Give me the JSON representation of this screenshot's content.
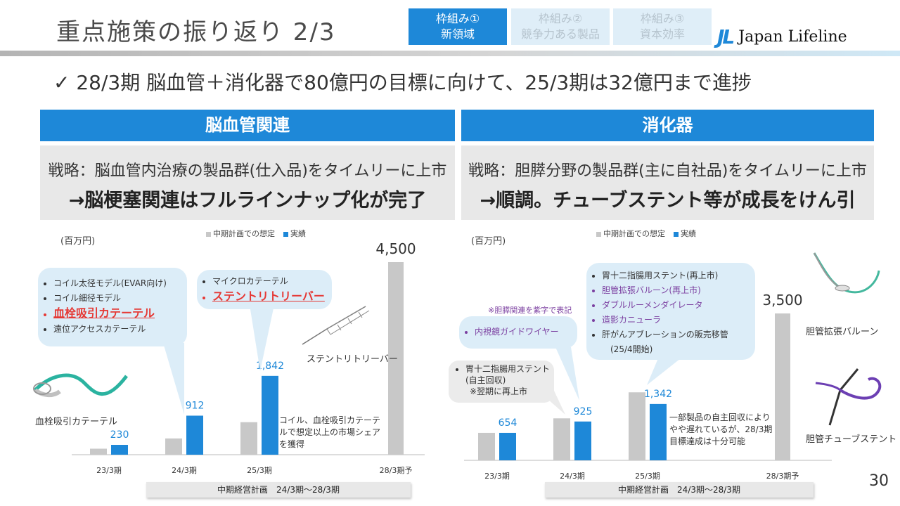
{
  "header": {
    "title": "重点施策の振り返り 2/3",
    "tabs": [
      {
        "line1": "枠組み①",
        "line2": "新領域"
      },
      {
        "line1": "枠組み②",
        "line2": "競争力ある製品"
      },
      {
        "line1": "枠組み③",
        "line2": "資本効率"
      }
    ],
    "logo_mark": "JL",
    "logo_text": "Japan Lifeline"
  },
  "headline": "✓ 28/3期 脳血管＋消化器で80億円の目標に向けて、25/3期は32億円まで進捗",
  "left": {
    "section_title": "脳血管関連",
    "strategy": "戦略：脳血管内治療の製品群(仕入品)をタイムリーに上市",
    "result": "→脳梗塞関連はフルラインナップ化が完了",
    "unit": "(百万円)",
    "bubble1": [
      "コイル太径モデル(EVAR向け)",
      "コイル細径モデル",
      "血栓吸引カテーテル",
      "遠位アクセスカテーテル"
    ],
    "bubble2": [
      "マイクロカテーテル",
      "ステントリトリーバー"
    ],
    "product_label_1": "血栓吸引カテーテル",
    "product_label_2": "ステントリトリーバー",
    "note": "コイル、血栓吸引カテーテルで想定以上の市場シェアを獲得",
    "plan_label": "中期経営計画　24/3期～28/3期"
  },
  "right": {
    "section_title": "消化器",
    "strategy": "戦略：胆膵分野の製品群(主に自社品)をタイムリーに上市",
    "result": "→順調。チューブステント等が成長をけん引",
    "unit": "(百万円)",
    "purple_note": "※胆膵関連を紫字で表記",
    "bubble_small": [
      "内視鏡ガイドワイヤー"
    ],
    "bubble_gray": [
      "胃十二指腸用ステント(自主回収)",
      "※翌期に再上市"
    ],
    "bubble_big": [
      "胃十二指腸用ステント(再上市)",
      "胆管拡張バルーン(再上市)",
      "ダブルルーメンダイレータ",
      "造影カニューラ",
      "肝がんアブレーションの販売移管",
      "(25/4開始)"
    ],
    "note": "一部製品の自主回収によりやや遅れているが、28/3期目標達成は十分可能",
    "product_label_1": "胆管拡張バルーン",
    "product_label_2": "胆管チューブステント",
    "plan_label": "中期経営計画　24/3期～28/3期"
  },
  "page_number": "30",
  "colors": {
    "accent": "#1e88d8",
    "plan_bar": "#c8c8c8",
    "red": "#e53935",
    "purple": "#7b3fa0"
  },
  "chart_data": [
    {
      "type": "bar",
      "title": "脳血管関連",
      "categories": [
        "23/3期",
        "24/3期",
        "25/3期",
        "28/3期予"
      ],
      "series": [
        {
          "name": "中期計画での想定",
          "values": [
            140,
            380,
            760,
            4500
          ]
        },
        {
          "name": "実績",
          "values": [
            230,
            912,
            1842,
            null
          ]
        }
      ],
      "data_labels": [
        "230",
        "912",
        "1,842",
        "4,500"
      ],
      "ylabel": "(百万円)",
      "ylim": [
        0,
        4700
      ],
      "legend": "top"
    },
    {
      "type": "bar",
      "title": "消化器",
      "categories": [
        "23/3期",
        "24/3期",
        "25/3期",
        "28/3期予"
      ],
      "series": [
        {
          "name": "中期計画での想定",
          "values": [
            654,
            1000,
            1620,
            3500
          ]
        },
        {
          "name": "実績",
          "values": [
            654,
            925,
            1342,
            null
          ]
        }
      ],
      "data_labels": [
        "654",
        "925",
        "1,342",
        "3,500"
      ],
      "ylabel": "(百万円)",
      "ylim": [
        0,
        4400
      ],
      "legend": "top"
    }
  ]
}
